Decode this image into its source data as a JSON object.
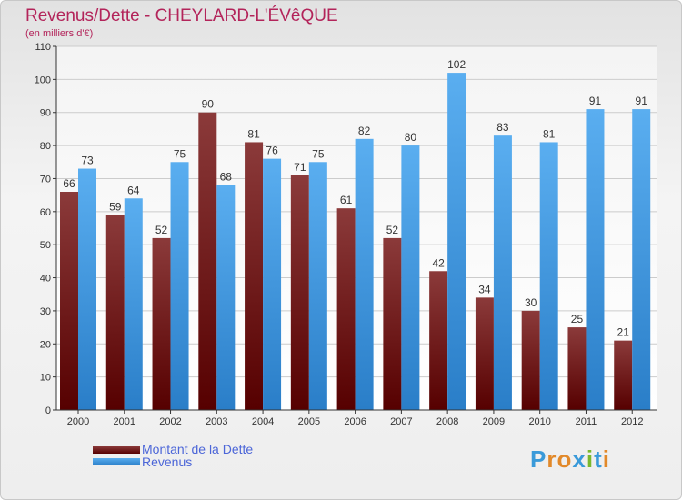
{
  "colors": {
    "title": "#b3245a",
    "dette_top": "#8b3a3a",
    "dette_bottom": "#560000",
    "revenus_top": "#5aaef0",
    "revenus_bottom": "#2a7ec8",
    "legend_text": "#4c66d8"
  },
  "logo": {
    "letters": [
      "P",
      "r",
      "o",
      "x",
      "i",
      "t",
      "i"
    ],
    "colors": [
      "#3a9ad9",
      "#e2892a",
      "#e2892a",
      "#3a9ad9",
      "#7ab82e",
      "#3a9ad9",
      "#e2892a"
    ]
  },
  "chart_data": {
    "type": "bar",
    "title": "Revenus/Dette - CHEYLARD-L'ÉVêQUE",
    "subtitle": "(en milliers d'€)",
    "xlabel": "",
    "ylabel": "",
    "ylim": [
      0,
      110
    ],
    "yticks": [
      0,
      10,
      20,
      30,
      40,
      50,
      60,
      70,
      80,
      90,
      100,
      110
    ],
    "grid": true,
    "categories": [
      "2000",
      "2001",
      "2002",
      "2003",
      "2004",
      "2005",
      "2006",
      "2007",
      "2008",
      "2009",
      "2010",
      "2011",
      "2012"
    ],
    "series": [
      {
        "name": "Montant de la Dette",
        "values": [
          66,
          59,
          52,
          90,
          81,
          71,
          61,
          52,
          42,
          34,
          30,
          25,
          21
        ]
      },
      {
        "name": "Revenus",
        "values": [
          73,
          64,
          75,
          68,
          76,
          75,
          82,
          80,
          102,
          83,
          81,
          91,
          91
        ]
      }
    ],
    "legend_position": "bottom-left"
  }
}
